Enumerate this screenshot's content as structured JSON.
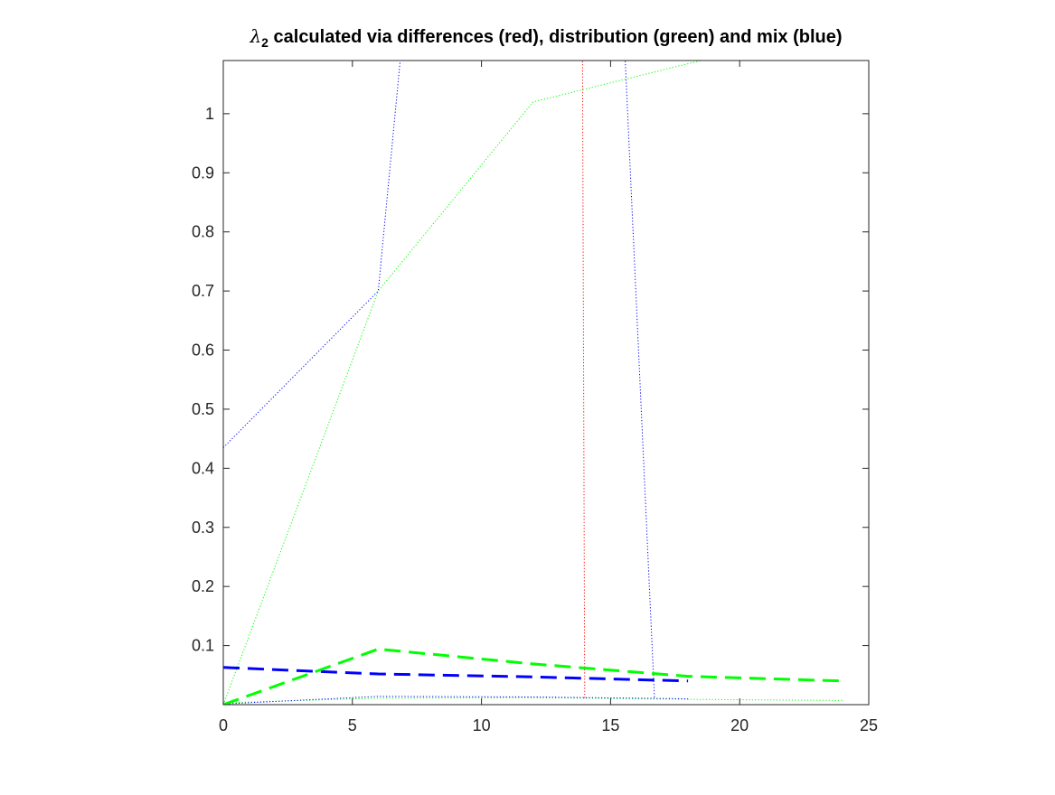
{
  "chart_data": {
    "type": "line",
    "title": {
      "symbol": "λ",
      "subscript": "2",
      "text": " calculated via differences (red), distribution (green) and mix (blue)"
    },
    "xlabel": "",
    "ylabel": "",
    "xlim": [
      0,
      25
    ],
    "ylim": [
      0.0,
      1.09
    ],
    "xticks": [
      0,
      5,
      10,
      15,
      20,
      25
    ],
    "yticks": [
      0.1,
      0.2,
      0.3,
      0.4,
      0.5,
      0.6,
      0.7,
      0.8,
      0.9,
      1.0
    ],
    "xtick_labels": [
      "0",
      "5",
      "10",
      "15",
      "20",
      "25"
    ],
    "ytick_labels": [
      "0.1",
      "0.2",
      "0.3",
      "0.4",
      "0.5",
      "0.6",
      "0.7",
      "0.8",
      "0.9",
      "1"
    ],
    "grid": false,
    "legend": "none",
    "series": [
      {
        "color": "#0000ff",
        "style": "dotted",
        "x": [
          0,
          6,
          7.2
        ],
        "y": [
          0.435,
          0.7,
          1.25
        ]
      },
      {
        "color": "#0000ff",
        "style": "dotted",
        "x": [
          15.4,
          16.7
        ],
        "y": [
          1.25,
          0.01
        ]
      },
      {
        "color": "#ff0000",
        "style": "dotted",
        "x": [
          13.9,
          14.0
        ],
        "y": [
          1.25,
          0.01
        ]
      },
      {
        "color": "#00ff00",
        "style": "dotted",
        "x": [
          0,
          6,
          12,
          18.5
        ],
        "y": [
          0.0,
          0.7,
          1.02,
          1.09
        ]
      },
      {
        "color": "#00ff00",
        "style": "dotted",
        "x": [
          0,
          6,
          12,
          18,
          24
        ],
        "y": [
          0.003,
          0.011,
          0.012,
          0.009,
          0.007
        ]
      },
      {
        "color": "#0000ff",
        "style": "dotted",
        "x": [
          0,
          6,
          12,
          18
        ],
        "y": [
          0.001,
          0.014,
          0.013,
          0.01
        ]
      },
      {
        "color": "#0000ff",
        "style": "dashed",
        "x": [
          0,
          6,
          12,
          18
        ],
        "y": [
          0.063,
          0.052,
          0.047,
          0.04
        ]
      },
      {
        "color": "#00ff00",
        "style": "dashed",
        "x": [
          0,
          6,
          12,
          18,
          24
        ],
        "y": [
          0.0,
          0.094,
          0.069,
          0.048,
          0.04
        ]
      }
    ]
  }
}
